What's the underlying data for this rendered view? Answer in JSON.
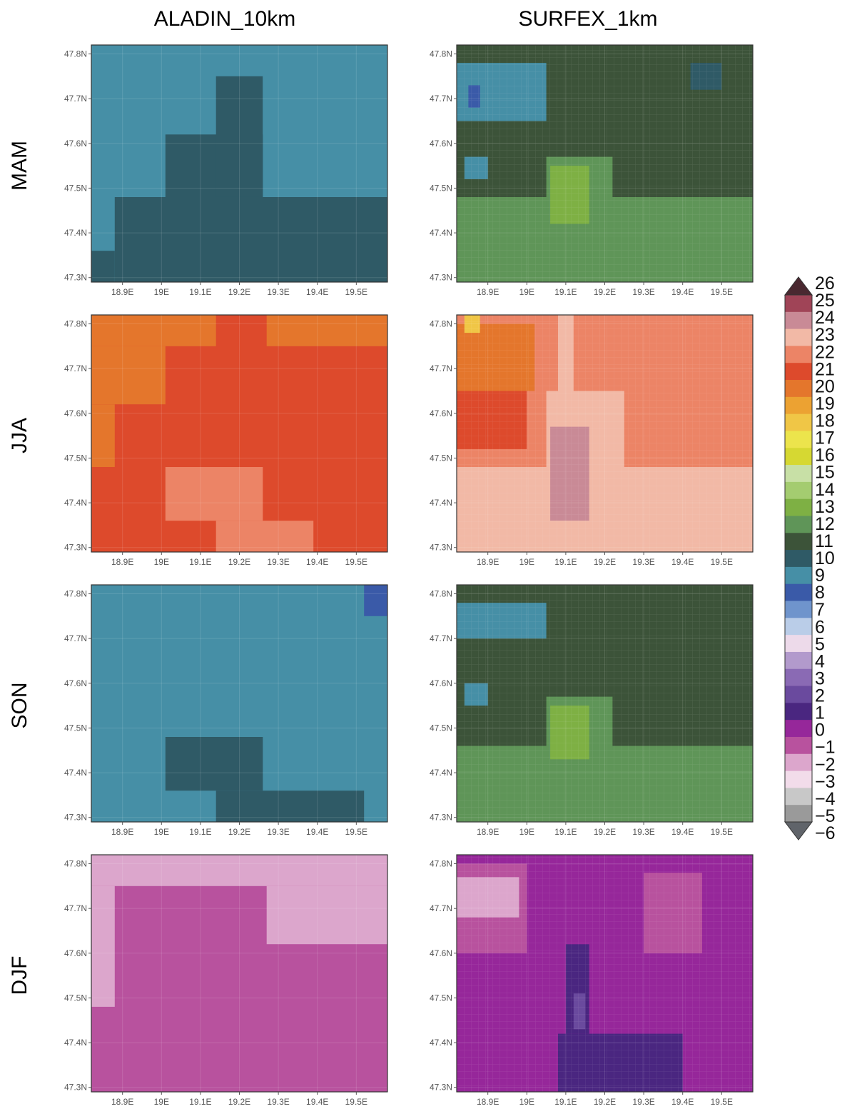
{
  "figure": {
    "columns": [
      "ALADIN_10km",
      "SURFEX_1km"
    ],
    "rows": [
      "MAM",
      "JJA",
      "SON",
      "DJF"
    ]
  },
  "axes": {
    "yticks": [
      "47.8N",
      "47.7N",
      "47.6N",
      "47.5N",
      "47.4N",
      "47.3N"
    ],
    "xticks": [
      "18.9E",
      "19E",
      "19.1E",
      "19.2E",
      "19.3E",
      "19.4E",
      "19.5E"
    ]
  },
  "colorbar": {
    "labels": [
      "26",
      "25",
      "24",
      "23",
      "22",
      "21",
      "20",
      "19",
      "18",
      "17",
      "16",
      "15",
      "14",
      "13",
      "12",
      "11",
      "10",
      "9",
      "8",
      "7",
      "6",
      "5",
      "4",
      "3",
      "2",
      "1",
      "0",
      "-1",
      "-2",
      "-3",
      "-4",
      "-5",
      "-6"
    ],
    "colors": [
      "#4a2830",
      "#a04457",
      "#c98a96",
      "#f2b9a6",
      "#ec8466",
      "#dd4a2c",
      "#e4762c",
      "#eca232",
      "#f0c646",
      "#ece44c",
      "#d6d832",
      "#c8e0a6",
      "#a4cc70",
      "#7eb044",
      "#5f9558",
      "#3c5339",
      "#2f5a66",
      "#468fa6",
      "#3a5aa8",
      "#6f94cc",
      "#bacde8",
      "#eddaea",
      "#b29acc",
      "#8a6ab4",
      "#6a4a9e",
      "#4a2680",
      "#96279a",
      "#b8529e",
      "#dca6cc",
      "#f2dcea",
      "#c8c8c8",
      "#9a9a9a",
      "#60646a"
    ]
  },
  "chart_data": [
    {
      "type": "heatmap",
      "column": "ALADIN_10km",
      "row": "MAM",
      "xlim": [
        18.82,
        19.58
      ],
      "ylim": [
        47.29,
        47.82
      ],
      "cells": [
        {
          "x0": 18.82,
          "x1": 19.58,
          "y0": 47.29,
          "y1": 47.82,
          "value": 9
        },
        {
          "x0": 19.01,
          "x1": 19.26,
          "y0": 47.48,
          "y1": 47.62,
          "value": 10
        },
        {
          "x0": 19.14,
          "x1": 19.26,
          "y0": 47.48,
          "y1": 47.75,
          "value": 10
        },
        {
          "x0": 18.88,
          "x1": 19.58,
          "y0": 47.29,
          "y1": 47.48,
          "value": 10
        },
        {
          "x0": 18.82,
          "x1": 18.88,
          "y0": 47.29,
          "y1": 47.36,
          "value": 10
        }
      ]
    },
    {
      "type": "heatmap",
      "column": "SURFEX_1km",
      "row": "MAM",
      "xlim": [
        18.82,
        19.58
      ],
      "ylim": [
        47.29,
        47.82
      ],
      "base_value": 11,
      "cells": [
        {
          "x0": 18.82,
          "x1": 19.58,
          "y0": 47.29,
          "y1": 47.48,
          "value": 12
        },
        {
          "x0": 19.05,
          "x1": 19.22,
          "y0": 47.45,
          "y1": 47.57,
          "value": 12
        },
        {
          "x0": 19.06,
          "x1": 19.16,
          "y0": 47.42,
          "y1": 47.55,
          "value": 13
        },
        {
          "x0": 18.82,
          "x1": 19.05,
          "y0": 47.65,
          "y1": 47.78,
          "value": 9
        },
        {
          "x0": 18.84,
          "x1": 18.9,
          "y0": 47.52,
          "y1": 47.57,
          "value": 9
        },
        {
          "x0": 18.85,
          "x1": 18.88,
          "y0": 47.68,
          "y1": 47.73,
          "value": 8
        },
        {
          "x0": 19.42,
          "x1": 19.5,
          "y0": 47.72,
          "y1": 47.78,
          "value": 10
        }
      ]
    },
    {
      "type": "heatmap",
      "column": "ALADIN_10km",
      "row": "JJA",
      "xlim": [
        18.82,
        19.58
      ],
      "ylim": [
        47.29,
        47.82
      ],
      "cells": [
        {
          "x0": 18.82,
          "x1": 19.58,
          "y0": 47.29,
          "y1": 47.82,
          "value": 21
        },
        {
          "x0": 18.82,
          "x1": 19.14,
          "y0": 47.75,
          "y1": 47.82,
          "value": 20
        },
        {
          "x0": 19.27,
          "x1": 19.58,
          "y0": 47.75,
          "y1": 47.82,
          "value": 20
        },
        {
          "x0": 18.82,
          "x1": 19.01,
          "y0": 47.62,
          "y1": 47.75,
          "value": 20
        },
        {
          "x0": 18.82,
          "x1": 18.88,
          "y0": 47.48,
          "y1": 47.62,
          "value": 20
        },
        {
          "x0": 19.01,
          "x1": 19.26,
          "y0": 47.36,
          "y1": 47.48,
          "value": 22
        },
        {
          "x0": 19.14,
          "x1": 19.39,
          "y0": 47.29,
          "y1": 47.36,
          "value": 22
        }
      ]
    },
    {
      "type": "heatmap",
      "column": "SURFEX_1km",
      "row": "JJA",
      "xlim": [
        18.82,
        19.58
      ],
      "ylim": [
        47.29,
        47.82
      ],
      "base_value": 22,
      "cells": [
        {
          "x0": 18.82,
          "x1": 19.58,
          "y0": 47.29,
          "y1": 47.48,
          "value": 23
        },
        {
          "x0": 19.05,
          "x1": 19.25,
          "y0": 47.45,
          "y1": 47.65,
          "value": 23
        },
        {
          "x0": 19.08,
          "x1": 19.12,
          "y0": 47.65,
          "y1": 47.82,
          "value": 23
        },
        {
          "x0": 19.06,
          "x1": 19.16,
          "y0": 47.36,
          "y1": 47.57,
          "value": 24
        },
        {
          "x0": 18.82,
          "x1": 19.0,
          "y0": 47.52,
          "y1": 47.65,
          "value": 21
        },
        {
          "x0": 18.82,
          "x1": 19.02,
          "y0": 47.65,
          "y1": 47.8,
          "value": 20
        },
        {
          "x0": 18.84,
          "x1": 18.88,
          "y0": 47.78,
          "y1": 47.82,
          "value": 18
        }
      ]
    },
    {
      "type": "heatmap",
      "column": "ALADIN_10km",
      "row": "SON",
      "xlim": [
        18.82,
        19.58
      ],
      "ylim": [
        47.29,
        47.82
      ],
      "cells": [
        {
          "x0": 18.82,
          "x1": 19.58,
          "y0": 47.29,
          "y1": 47.82,
          "value": 9
        },
        {
          "x0": 19.01,
          "x1": 19.26,
          "y0": 47.36,
          "y1": 47.48,
          "value": 10
        },
        {
          "x0": 19.14,
          "x1": 19.52,
          "y0": 47.29,
          "y1": 47.36,
          "value": 10
        },
        {
          "x0": 19.52,
          "x1": 19.58,
          "y0": 47.75,
          "y1": 47.82,
          "value": 8
        }
      ]
    },
    {
      "type": "heatmap",
      "column": "SURFEX_1km",
      "row": "SON",
      "xlim": [
        18.82,
        19.58
      ],
      "ylim": [
        47.29,
        47.82
      ],
      "base_value": 11,
      "cells": [
        {
          "x0": 18.82,
          "x1": 19.58,
          "y0": 47.29,
          "y1": 47.46,
          "value": 12
        },
        {
          "x0": 19.05,
          "x1": 19.22,
          "y0": 47.45,
          "y1": 47.57,
          "value": 12
        },
        {
          "x0": 19.06,
          "x1": 19.16,
          "y0": 47.43,
          "y1": 47.55,
          "value": 13
        },
        {
          "x0": 18.82,
          "x1": 19.05,
          "y0": 47.7,
          "y1": 47.78,
          "value": 9
        },
        {
          "x0": 18.84,
          "x1": 18.9,
          "y0": 47.55,
          "y1": 47.6,
          "value": 9
        }
      ]
    },
    {
      "type": "heatmap",
      "column": "ALADIN_10km",
      "row": "DJF",
      "xlim": [
        18.82,
        19.58
      ],
      "ylim": [
        47.29,
        47.82
      ],
      "cells": [
        {
          "x0": 18.82,
          "x1": 19.58,
          "y0": 47.29,
          "y1": 47.82,
          "value": -1
        },
        {
          "x0": 18.82,
          "x1": 19.58,
          "y0": 47.75,
          "y1": 47.82,
          "value": -2
        },
        {
          "x0": 19.27,
          "x1": 19.58,
          "y0": 47.62,
          "y1": 47.75,
          "value": -2
        },
        {
          "x0": 18.82,
          "x1": 18.88,
          "y0": 47.48,
          "y1": 47.75,
          "value": -2
        }
      ]
    },
    {
      "type": "heatmap",
      "column": "SURFEX_1km",
      "row": "DJF",
      "xlim": [
        18.82,
        19.58
      ],
      "ylim": [
        47.29,
        47.82
      ],
      "base_value": 0,
      "cells": [
        {
          "x0": 18.82,
          "x1": 19.0,
          "y0": 47.6,
          "y1": 47.8,
          "value": -1
        },
        {
          "x0": 18.82,
          "x1": 18.98,
          "y0": 47.68,
          "y1": 47.77,
          "value": -2
        },
        {
          "x0": 19.3,
          "x1": 19.45,
          "y0": 47.6,
          "y1": 47.78,
          "value": -1
        },
        {
          "x0": 19.08,
          "x1": 19.4,
          "y0": 47.29,
          "y1": 47.42,
          "value": 1
        },
        {
          "x0": 19.1,
          "x1": 19.16,
          "y0": 47.42,
          "y1": 47.62,
          "value": 1
        },
        {
          "x0": 19.12,
          "x1": 19.15,
          "y0": 47.43,
          "y1": 47.51,
          "value": 2
        }
      ]
    }
  ]
}
